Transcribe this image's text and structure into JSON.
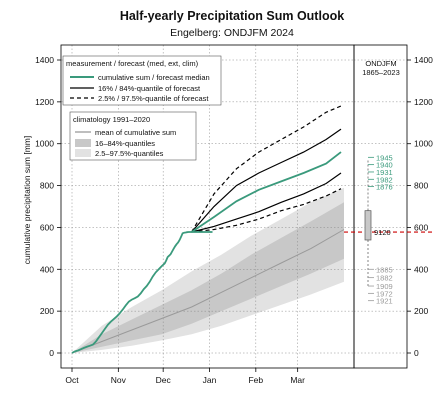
{
  "chart_data": {
    "type": "line",
    "title": "Half-yearly Precipitation Sum Outlook",
    "subtitle": "Engelberg: ONDJFM 2024",
    "ylabel": "cumulative precipitation sum [mm]",
    "ylim": [
      0,
      1400
    ],
    "y_ticks": [
      0,
      200,
      400,
      600,
      800,
      1000,
      1200,
      1400
    ],
    "x_ticks": [
      "Oct",
      "Nov",
      "Dec",
      "Jan",
      "Feb",
      "Mar"
    ],
    "x_tick_days": [
      0,
      31,
      61,
      92,
      123,
      151
    ],
    "x_range_days": [
      0,
      182
    ],
    "grid": true,
    "legend_forecast": {
      "title": "measurement / forecast (med, ext, clim)",
      "items": [
        "cumulative sum / forecast median",
        "16% / 84%-quantile of forecast",
        "2.5% / 97.5%-quantile of forecast"
      ]
    },
    "legend_climatology": {
      "title": "climatology 1991–2020",
      "items": [
        "mean of cumulative sum",
        "16–84%-quantiles",
        "2.5–97.5%-quantiles"
      ]
    },
    "colors": {
      "measurement": "#3a9a7c",
      "forecast": "#000000",
      "clim_mean": "#9a9a9a",
      "band_inner": "#c8c8c8",
      "band_outer": "#e2e2e2",
      "current": "#cc0000",
      "years_wet": "#3a9a7c",
      "years_dry": "#9a9a9a"
    },
    "measurement": {
      "name": "cumulative sum / forecast median",
      "x": [
        0,
        2,
        4,
        6,
        8,
        10,
        12,
        14,
        16,
        18,
        20,
        22,
        24,
        26,
        28,
        30,
        32,
        34,
        36,
        38,
        40,
        42,
        44,
        46,
        48,
        50,
        52,
        54,
        56,
        58,
        60,
        62,
        63,
        64,
        65,
        66,
        67,
        68,
        69,
        70,
        71,
        72,
        73,
        74,
        75,
        76,
        77,
        78,
        79,
        80,
        81,
        82,
        83,
        84,
        85,
        86,
        87,
        88,
        89,
        90,
        91,
        92,
        93,
        94
      ],
      "y": [
        0,
        8,
        12,
        18,
        25,
        30,
        35,
        40,
        55,
        75,
        95,
        115,
        135,
        150,
        162,
        175,
        190,
        208,
        228,
        245,
        255,
        262,
        270,
        285,
        305,
        320,
        340,
        365,
        385,
        400,
        415,
        428,
        442,
        458,
        465,
        472,
        485,
        498,
        510,
        520,
        528,
        540,
        555,
        572,
        575,
        576,
        577,
        578,
        578,
        578,
        578,
        578,
        578,
        578,
        578,
        578,
        578,
        578,
        578,
        578,
        578,
        578,
        578,
        578
      ]
    },
    "forecast_start_day": 80,
    "forecast_x": [
      80,
      95,
      110,
      125,
      140,
      155,
      170,
      180
    ],
    "forecast_median": [
      578,
      650,
      725,
      780,
      820,
      860,
      905,
      960
    ],
    "forecast_q16": [
      578,
      605,
      640,
      675,
      720,
      760,
      810,
      860
    ],
    "forecast_q84": [
      578,
      700,
      800,
      860,
      910,
      960,
      1020,
      1070
    ],
    "forecast_q025": [
      578,
      590,
      610,
      640,
      680,
      710,
      750,
      785
    ],
    "forecast_q975": [
      578,
      760,
      880,
      960,
      1020,
      1080,
      1150,
      1180
    ],
    "clim_x": [
      0,
      20,
      40,
      60,
      80,
      100,
      120,
      140,
      160,
      182
    ],
    "clim_mean": [
      0,
      55,
      110,
      165,
      220,
      290,
      360,
      430,
      500,
      590
    ],
    "clim_q16": [
      0,
      30,
      60,
      90,
      140,
      200,
      260,
      320,
      380,
      450
    ],
    "clim_q84": [
      0,
      90,
      160,
      230,
      300,
      380,
      470,
      550,
      630,
      720
    ],
    "clim_q025": [
      0,
      15,
      35,
      60,
      90,
      130,
      180,
      230,
      280,
      340
    ],
    "clim_q975": [
      0,
      130,
      220,
      300,
      390,
      470,
      560,
      640,
      720,
      790
    ],
    "side_panel": {
      "title": "ONDJFM",
      "years_range": "1865–2023",
      "current_value": 578,
      "current_rank_label": "9120",
      "box_q25": 540,
      "box_q75": 680,
      "whisker_low": 320,
      "whisker_high": 920,
      "wet_years": [
        "1945",
        "1940",
        "1931",
        "1982",
        "1876"
      ],
      "wet_values": [
        935,
        900,
        865,
        830,
        795
      ],
      "dry_years": [
        "1885",
        "1882",
        "1909",
        "1972",
        "1921"
      ],
      "dry_values": [
        400,
        360,
        320,
        285,
        250
      ]
    }
  }
}
